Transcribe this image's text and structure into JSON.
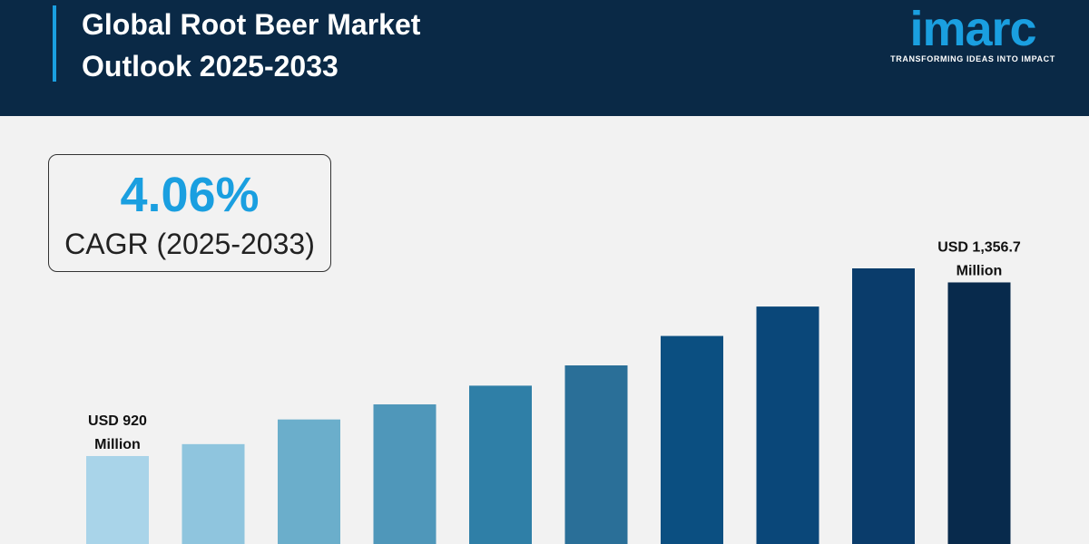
{
  "header": {
    "title_line1": "Global Root Beer Market",
    "title_line2": "Outlook 2025-2033"
  },
  "logo": {
    "wordmark": "imarc",
    "tagline": "TRANSFORMING IDEAS INTO IMPACT"
  },
  "cagr": {
    "value": "4.06%",
    "label": "CAGR (2025-2033)"
  },
  "colors": {
    "header_bg": "#0a2946",
    "accent": "#1a9fe0",
    "background": "#f2f2f2",
    "bars": [
      "#a9d4e9",
      "#8fc5de",
      "#6baecb",
      "#4f97ba",
      "#2f7fa7",
      "#2a6f98",
      "#0b4f81",
      "#0a4779",
      "#0a3c6b",
      "#082a4c"
    ]
  },
  "chart_data": {
    "type": "bar",
    "categories": [
      "",
      "",
      "",
      "",
      "",
      "",
      "",
      "",
      "",
      ""
    ],
    "values": [
      920,
      950,
      1012,
      1050,
      1097,
      1148,
      1222,
      1296,
      1392,
      1356.7
    ],
    "annotations": [
      {
        "index": 0,
        "line1": "USD 920",
        "line2": "Million"
      },
      {
        "index": 9,
        "line1": "USD 1,356.7",
        "line2": "Million"
      }
    ],
    "title": "",
    "xlabel": "",
    "ylabel": ""
  }
}
